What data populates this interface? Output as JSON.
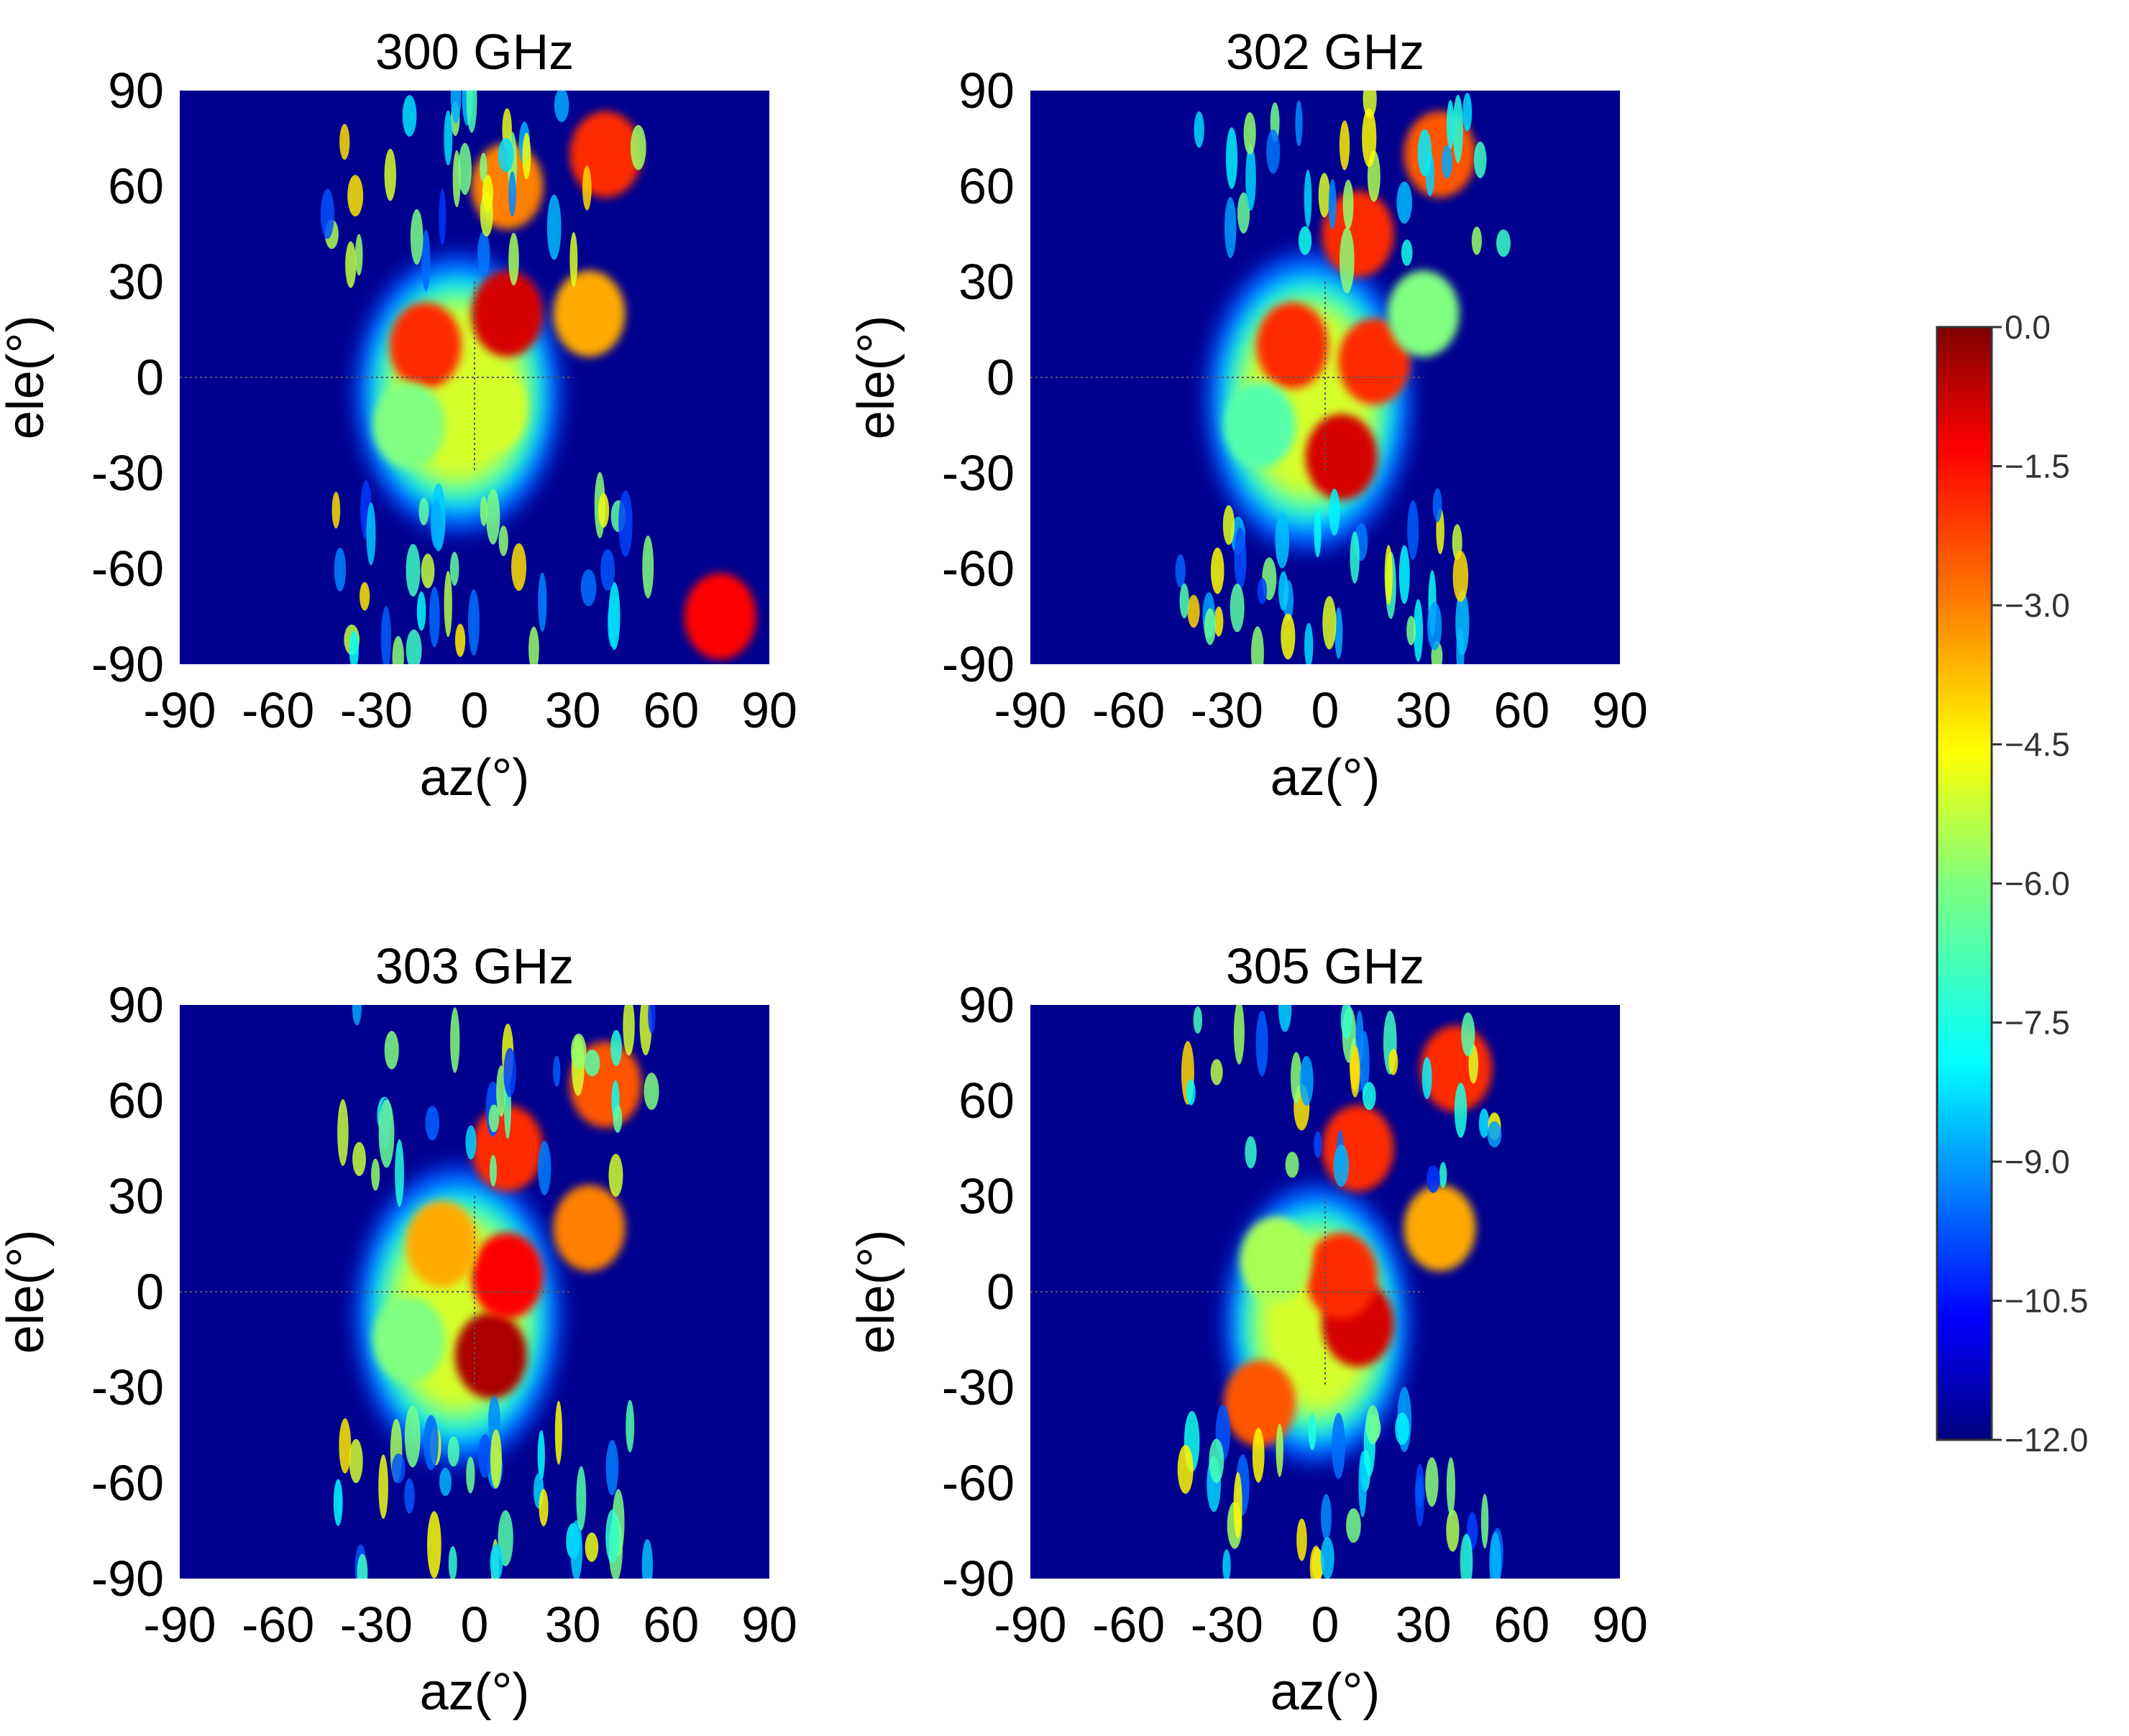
{
  "chart_data": {
    "type": "heatmap",
    "panels": [
      {
        "title": "300 GHz",
        "xlabel": "az(°)",
        "ylabel": "ele(°)",
        "xlim": [
          -90,
          90
        ],
        "ylim": [
          -90,
          90
        ],
        "xticks": [
          "-90",
          "-60",
          "-30",
          "0",
          "30",
          "60",
          "90"
        ],
        "yticks": [
          "90",
          "60",
          "30",
          "0",
          "-30",
          "-60",
          "-90"
        ],
        "peak_region": {
          "az": [
            -30,
            20
          ],
          "ele": [
            -40,
            30
          ]
        },
        "hot_spots": [
          {
            "az": 10,
            "ele": 20,
            "value": -1.0
          },
          {
            "az": -15,
            "ele": 10,
            "value": -2.0
          },
          {
            "az": 5,
            "ele": -10,
            "value": -5.0
          },
          {
            "az": -20,
            "ele": -15,
            "value": -6.0
          },
          {
            "az": 35,
            "ele": 20,
            "value": -3.5
          },
          {
            "az": 40,
            "ele": 70,
            "value": -2.0
          },
          {
            "az": 10,
            "ele": 60,
            "value": -3.0
          },
          {
            "az": 75,
            "ele": -75,
            "value": -1.5
          }
        ]
      },
      {
        "title": "302 GHz",
        "xlabel": "az(°)",
        "ylabel": "ele(°)",
        "xlim": [
          -90,
          90
        ],
        "ylim": [
          -90,
          90
        ],
        "xticks": [
          "-90",
          "-60",
          "-30",
          "0",
          "30",
          "60",
          "90"
        ],
        "yticks": [
          "90",
          "60",
          "30",
          "0",
          "-30",
          "-60",
          "-90"
        ],
        "peak_region": {
          "az": [
            -30,
            20
          ],
          "ele": [
            -45,
            30
          ]
        },
        "hot_spots": [
          {
            "az": 5,
            "ele": -25,
            "value": -1.0
          },
          {
            "az": -10,
            "ele": 10,
            "value": -2.0
          },
          {
            "az": 15,
            "ele": 5,
            "value": -2.0
          },
          {
            "az": -20,
            "ele": -15,
            "value": -6.5
          },
          {
            "az": 30,
            "ele": 20,
            "value": -6.0
          },
          {
            "az": 35,
            "ele": 70,
            "value": -2.5
          },
          {
            "az": 10,
            "ele": 45,
            "value": -2.0
          }
        ]
      },
      {
        "title": "303 GHz",
        "xlabel": "az(°)",
        "ylabel": "ele(°)",
        "xlim": [
          -90,
          90
        ],
        "ylim": [
          -90,
          90
        ],
        "xticks": [
          "-90",
          "-60",
          "-30",
          "0",
          "30",
          "60",
          "90"
        ],
        "yticks": [
          "90",
          "60",
          "30",
          "0",
          "-30",
          "-60",
          "-90"
        ],
        "peak_region": {
          "az": [
            -30,
            20
          ],
          "ele": [
            -45,
            30
          ]
        },
        "hot_spots": [
          {
            "az": 5,
            "ele": -20,
            "value": -0.5
          },
          {
            "az": 10,
            "ele": 5,
            "value": -1.5
          },
          {
            "az": -10,
            "ele": 15,
            "value": -3.5
          },
          {
            "az": -20,
            "ele": -15,
            "value": -6.0
          },
          {
            "az": 35,
            "ele": 20,
            "value": -3.0
          },
          {
            "az": 40,
            "ele": 65,
            "value": -2.5
          },
          {
            "az": 10,
            "ele": 45,
            "value": -2.0
          }
        ]
      },
      {
        "title": "305 GHz",
        "xlabel": "az(°)",
        "ylabel": "ele(°)",
        "xlim": [
          -90,
          90
        ],
        "ylim": [
          -90,
          90
        ],
        "xticks": [
          "-90",
          "-60",
          "-30",
          "0",
          "30",
          "60",
          "90"
        ],
        "yticks": [
          "90",
          "60",
          "30",
          "0",
          "-30",
          "-60",
          "-90"
        ],
        "peak_region": {
          "az": [
            -25,
            20
          ],
          "ele": [
            -45,
            25
          ]
        },
        "hot_spots": [
          {
            "az": 10,
            "ele": -10,
            "value": -1.0
          },
          {
            "az": 5,
            "ele": 5,
            "value": -2.0
          },
          {
            "az": -15,
            "ele": 10,
            "value": -5.5
          },
          {
            "az": -20,
            "ele": -35,
            "value": -2.5
          },
          {
            "az": 35,
            "ele": 20,
            "value": -3.5
          },
          {
            "az": 40,
            "ele": 70,
            "value": -2.0
          },
          {
            "az": 10,
            "ele": 45,
            "value": -2.0
          }
        ]
      }
    ],
    "colorbar": {
      "range": [
        -12.0,
        0.0
      ],
      "ticks": [
        "0.0",
        "−1.5",
        "−3.0",
        "−4.5",
        "−6.0",
        "−7.5",
        "−9.0",
        "−10.5",
        "−12.0"
      ],
      "colormap": "jet"
    }
  },
  "colors": {
    "background_low": "#00008f",
    "jet_stops": [
      "#00007f",
      "#0000ff",
      "#007fff",
      "#00ffff",
      "#7fff7f",
      "#ffff00",
      "#ff7f00",
      "#ff0000",
      "#7f0000"
    ]
  }
}
